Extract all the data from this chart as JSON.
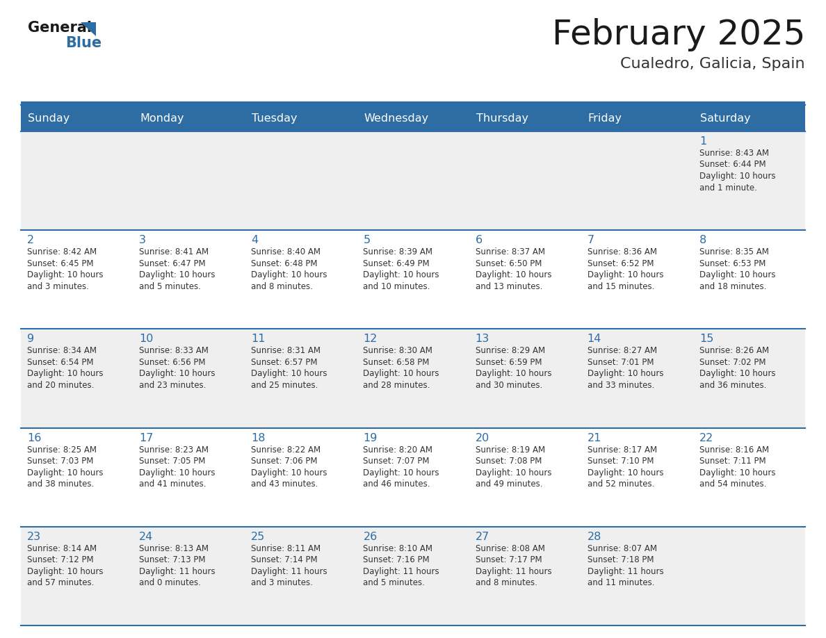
{
  "title": "February 2025",
  "subtitle": "Cualedro, Galicia, Spain",
  "header_bg": "#2E6DA4",
  "header_text": "#FFFFFF",
  "cell_bg_odd": "#EFEFEF",
  "cell_bg_even": "#FFFFFF",
  "title_color": "#1a1a1a",
  "subtitle_color": "#333333",
  "day_num_color": "#2E6DA4",
  "cell_text_color": "#333333",
  "border_color": "#2E6DA4",
  "day_headers": [
    "Sunday",
    "Monday",
    "Tuesday",
    "Wednesday",
    "Thursday",
    "Friday",
    "Saturday"
  ],
  "weeks": [
    [
      {
        "day": "",
        "info": ""
      },
      {
        "day": "",
        "info": ""
      },
      {
        "day": "",
        "info": ""
      },
      {
        "day": "",
        "info": ""
      },
      {
        "day": "",
        "info": ""
      },
      {
        "day": "",
        "info": ""
      },
      {
        "day": "1",
        "info": "Sunrise: 8:43 AM\nSunset: 6:44 PM\nDaylight: 10 hours\nand 1 minute."
      }
    ],
    [
      {
        "day": "2",
        "info": "Sunrise: 8:42 AM\nSunset: 6:45 PM\nDaylight: 10 hours\nand 3 minutes."
      },
      {
        "day": "3",
        "info": "Sunrise: 8:41 AM\nSunset: 6:47 PM\nDaylight: 10 hours\nand 5 minutes."
      },
      {
        "day": "4",
        "info": "Sunrise: 8:40 AM\nSunset: 6:48 PM\nDaylight: 10 hours\nand 8 minutes."
      },
      {
        "day": "5",
        "info": "Sunrise: 8:39 AM\nSunset: 6:49 PM\nDaylight: 10 hours\nand 10 minutes."
      },
      {
        "day": "6",
        "info": "Sunrise: 8:37 AM\nSunset: 6:50 PM\nDaylight: 10 hours\nand 13 minutes."
      },
      {
        "day": "7",
        "info": "Sunrise: 8:36 AM\nSunset: 6:52 PM\nDaylight: 10 hours\nand 15 minutes."
      },
      {
        "day": "8",
        "info": "Sunrise: 8:35 AM\nSunset: 6:53 PM\nDaylight: 10 hours\nand 18 minutes."
      }
    ],
    [
      {
        "day": "9",
        "info": "Sunrise: 8:34 AM\nSunset: 6:54 PM\nDaylight: 10 hours\nand 20 minutes."
      },
      {
        "day": "10",
        "info": "Sunrise: 8:33 AM\nSunset: 6:56 PM\nDaylight: 10 hours\nand 23 minutes."
      },
      {
        "day": "11",
        "info": "Sunrise: 8:31 AM\nSunset: 6:57 PM\nDaylight: 10 hours\nand 25 minutes."
      },
      {
        "day": "12",
        "info": "Sunrise: 8:30 AM\nSunset: 6:58 PM\nDaylight: 10 hours\nand 28 minutes."
      },
      {
        "day": "13",
        "info": "Sunrise: 8:29 AM\nSunset: 6:59 PM\nDaylight: 10 hours\nand 30 minutes."
      },
      {
        "day": "14",
        "info": "Sunrise: 8:27 AM\nSunset: 7:01 PM\nDaylight: 10 hours\nand 33 minutes."
      },
      {
        "day": "15",
        "info": "Sunrise: 8:26 AM\nSunset: 7:02 PM\nDaylight: 10 hours\nand 36 minutes."
      }
    ],
    [
      {
        "day": "16",
        "info": "Sunrise: 8:25 AM\nSunset: 7:03 PM\nDaylight: 10 hours\nand 38 minutes."
      },
      {
        "day": "17",
        "info": "Sunrise: 8:23 AM\nSunset: 7:05 PM\nDaylight: 10 hours\nand 41 minutes."
      },
      {
        "day": "18",
        "info": "Sunrise: 8:22 AM\nSunset: 7:06 PM\nDaylight: 10 hours\nand 43 minutes."
      },
      {
        "day": "19",
        "info": "Sunrise: 8:20 AM\nSunset: 7:07 PM\nDaylight: 10 hours\nand 46 minutes."
      },
      {
        "day": "20",
        "info": "Sunrise: 8:19 AM\nSunset: 7:08 PM\nDaylight: 10 hours\nand 49 minutes."
      },
      {
        "day": "21",
        "info": "Sunrise: 8:17 AM\nSunset: 7:10 PM\nDaylight: 10 hours\nand 52 minutes."
      },
      {
        "day": "22",
        "info": "Sunrise: 8:16 AM\nSunset: 7:11 PM\nDaylight: 10 hours\nand 54 minutes."
      }
    ],
    [
      {
        "day": "23",
        "info": "Sunrise: 8:14 AM\nSunset: 7:12 PM\nDaylight: 10 hours\nand 57 minutes."
      },
      {
        "day": "24",
        "info": "Sunrise: 8:13 AM\nSunset: 7:13 PM\nDaylight: 11 hours\nand 0 minutes."
      },
      {
        "day": "25",
        "info": "Sunrise: 8:11 AM\nSunset: 7:14 PM\nDaylight: 11 hours\nand 3 minutes."
      },
      {
        "day": "26",
        "info": "Sunrise: 8:10 AM\nSunset: 7:16 PM\nDaylight: 11 hours\nand 5 minutes."
      },
      {
        "day": "27",
        "info": "Sunrise: 8:08 AM\nSunset: 7:17 PM\nDaylight: 11 hours\nand 8 minutes."
      },
      {
        "day": "28",
        "info": "Sunrise: 8:07 AM\nSunset: 7:18 PM\nDaylight: 11 hours\nand 11 minutes."
      },
      {
        "day": "",
        "info": ""
      }
    ]
  ]
}
